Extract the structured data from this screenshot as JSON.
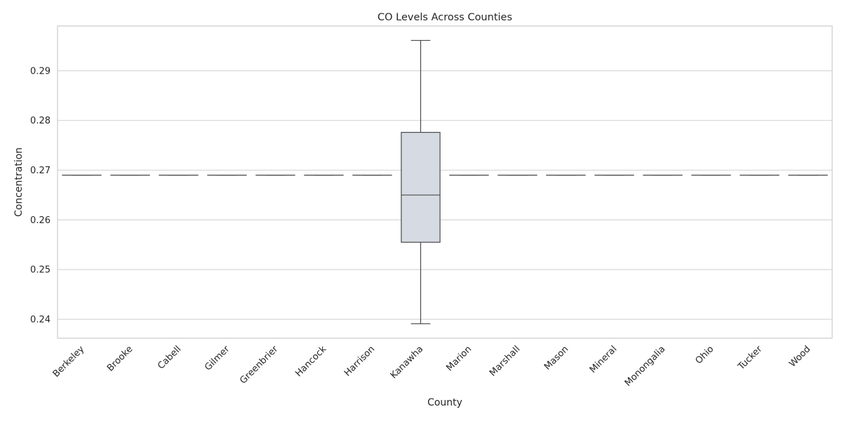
{
  "chart_data": {
    "type": "box",
    "title": "CO Levels Across Counties",
    "xlabel": "County",
    "ylabel": "Concentration",
    "ylim": [
      0.2362,
      0.299
    ],
    "yticks": [
      0.24,
      0.25,
      0.26,
      0.27,
      0.28,
      0.29
    ],
    "grid": "horizontal",
    "box_color": "#d6dbe3",
    "line_color": "#4a4a4a",
    "categories": [
      "Berkeley",
      "Brooke",
      "Cabell",
      "Gilmer",
      "Greenbrier",
      "Hancock",
      "Harrison",
      "Kanawha",
      "Marion",
      "Marshall",
      "Mason",
      "Mineral",
      "Monongalia",
      "Ohio",
      "Tucker",
      "Wood"
    ],
    "boxes": [
      {
        "min": 0.269,
        "q1": 0.269,
        "median": 0.269,
        "q3": 0.269,
        "max": 0.269
      },
      {
        "min": 0.269,
        "q1": 0.269,
        "median": 0.269,
        "q3": 0.269,
        "max": 0.269
      },
      {
        "min": 0.269,
        "q1": 0.269,
        "median": 0.269,
        "q3": 0.269,
        "max": 0.269
      },
      {
        "min": 0.269,
        "q1": 0.269,
        "median": 0.269,
        "q3": 0.269,
        "max": 0.269
      },
      {
        "min": 0.269,
        "q1": 0.269,
        "median": 0.269,
        "q3": 0.269,
        "max": 0.269
      },
      {
        "min": 0.269,
        "q1": 0.269,
        "median": 0.269,
        "q3": 0.269,
        "max": 0.269
      },
      {
        "min": 0.269,
        "q1": 0.269,
        "median": 0.269,
        "q3": 0.269,
        "max": 0.269
      },
      {
        "min": 0.2391,
        "q1": 0.2555,
        "median": 0.265,
        "q3": 0.2776,
        "max": 0.2961
      },
      {
        "min": 0.269,
        "q1": 0.269,
        "median": 0.269,
        "q3": 0.269,
        "max": 0.269
      },
      {
        "min": 0.269,
        "q1": 0.269,
        "median": 0.269,
        "q3": 0.269,
        "max": 0.269
      },
      {
        "min": 0.269,
        "q1": 0.269,
        "median": 0.269,
        "q3": 0.269,
        "max": 0.269
      },
      {
        "min": 0.269,
        "q1": 0.269,
        "median": 0.269,
        "q3": 0.269,
        "max": 0.269
      },
      {
        "min": 0.269,
        "q1": 0.269,
        "median": 0.269,
        "q3": 0.269,
        "max": 0.269
      },
      {
        "min": 0.269,
        "q1": 0.269,
        "median": 0.269,
        "q3": 0.269,
        "max": 0.269
      },
      {
        "min": 0.269,
        "q1": 0.269,
        "median": 0.269,
        "q3": 0.269,
        "max": 0.269
      },
      {
        "min": 0.269,
        "q1": 0.269,
        "median": 0.269,
        "q3": 0.269,
        "max": 0.269
      }
    ]
  }
}
